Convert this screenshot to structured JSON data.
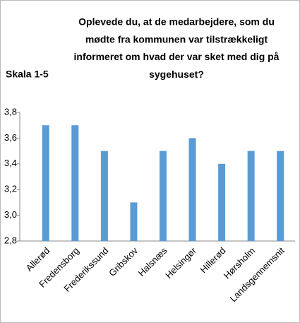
{
  "chart_data": {
    "type": "bar",
    "title": [
      "Oplevede du, at de medarbejdere, som du",
      "mødte fra kommunen var tilstrækkeligt",
      "informeret om hvad der var sket med dig på",
      "sygehuset?"
    ],
    "y_label": "Skala 1-5",
    "categories": [
      "Allerød",
      "Fredensborg",
      "Frederikssund",
      "Gribskov",
      "Halsnæs",
      "Helsingør",
      "Hillerød",
      "Hørsholm",
      "Landsgennemsnit"
    ],
    "values": [
      3.7,
      3.7,
      3.5,
      3.1,
      3.5,
      3.6,
      3.4,
      3.5,
      3.5
    ],
    "color": "#5b9bd5",
    "ylim": [
      2.8,
      3.8
    ],
    "yticks": [
      {
        "value": 2.8,
        "label": "2,8"
      },
      {
        "value": 3.0,
        "label": "3,0"
      },
      {
        "value": 3.2,
        "label": "3,2"
      },
      {
        "value": 3.4,
        "label": "3,4"
      },
      {
        "value": 3.6,
        "label": "3,6"
      },
      {
        "value": 3.8,
        "label": "3,8"
      }
    ],
    "grid": false
  }
}
